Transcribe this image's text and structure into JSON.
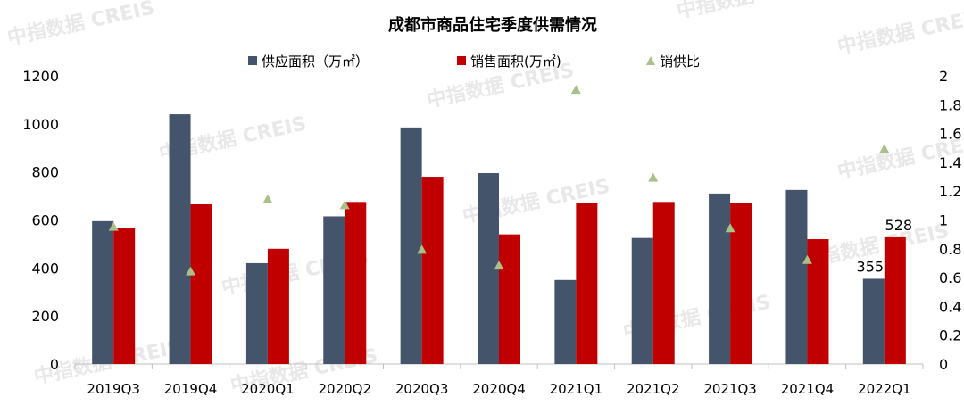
{
  "chart_data": {
    "type": "bar",
    "title": "成都市商品住宅季度供需情况",
    "watermark": "中指数据 CREIS",
    "categories": [
      "2019Q3",
      "2019Q4",
      "2020Q1",
      "2020Q2",
      "2020Q3",
      "2020Q4",
      "2021Q1",
      "2021Q2",
      "2021Q3",
      "2021Q4",
      "2022Q1"
    ],
    "series": [
      {
        "name": "供应面积（万㎡）",
        "type": "bar",
        "axis": "left",
        "color": "#44546a",
        "values": [
          595,
          1040,
          420,
          615,
          985,
          795,
          350,
          525,
          710,
          725,
          355
        ]
      },
      {
        "name": "销售面积(万㎡)",
        "type": "bar",
        "axis": "left",
        "color": "#c00000",
        "values": [
          565,
          665,
          480,
          675,
          780,
          540,
          670,
          675,
          670,
          520,
          528
        ]
      },
      {
        "name": "销供比",
        "type": "scatter",
        "marker": "triangle",
        "axis": "right",
        "color": "#a9c08a",
        "values": [
          0.95,
          0.64,
          1.14,
          1.1,
          0.79,
          0.68,
          1.9,
          1.29,
          0.94,
          0.72,
          1.49
        ]
      }
    ],
    "data_labels": [
      {
        "category": "2022Q1",
        "series": "供应面积（万㎡）",
        "text": "355"
      },
      {
        "category": "2022Q1",
        "series": "销售面积(万㎡)",
        "text": "528"
      }
    ],
    "y_left": {
      "min": 0,
      "max": 1200,
      "ticks": [
        "0",
        "200",
        "400",
        "600",
        "800",
        "1000",
        "1200"
      ]
    },
    "y_right": {
      "min": 0,
      "max": 2,
      "ticks": [
        "0",
        "0.2",
        "0.4",
        "0.6",
        "0.8",
        "1",
        "1.2",
        "1.4",
        "1.6",
        "1.8",
        "2"
      ]
    },
    "legend": "top",
    "grid": false
  }
}
